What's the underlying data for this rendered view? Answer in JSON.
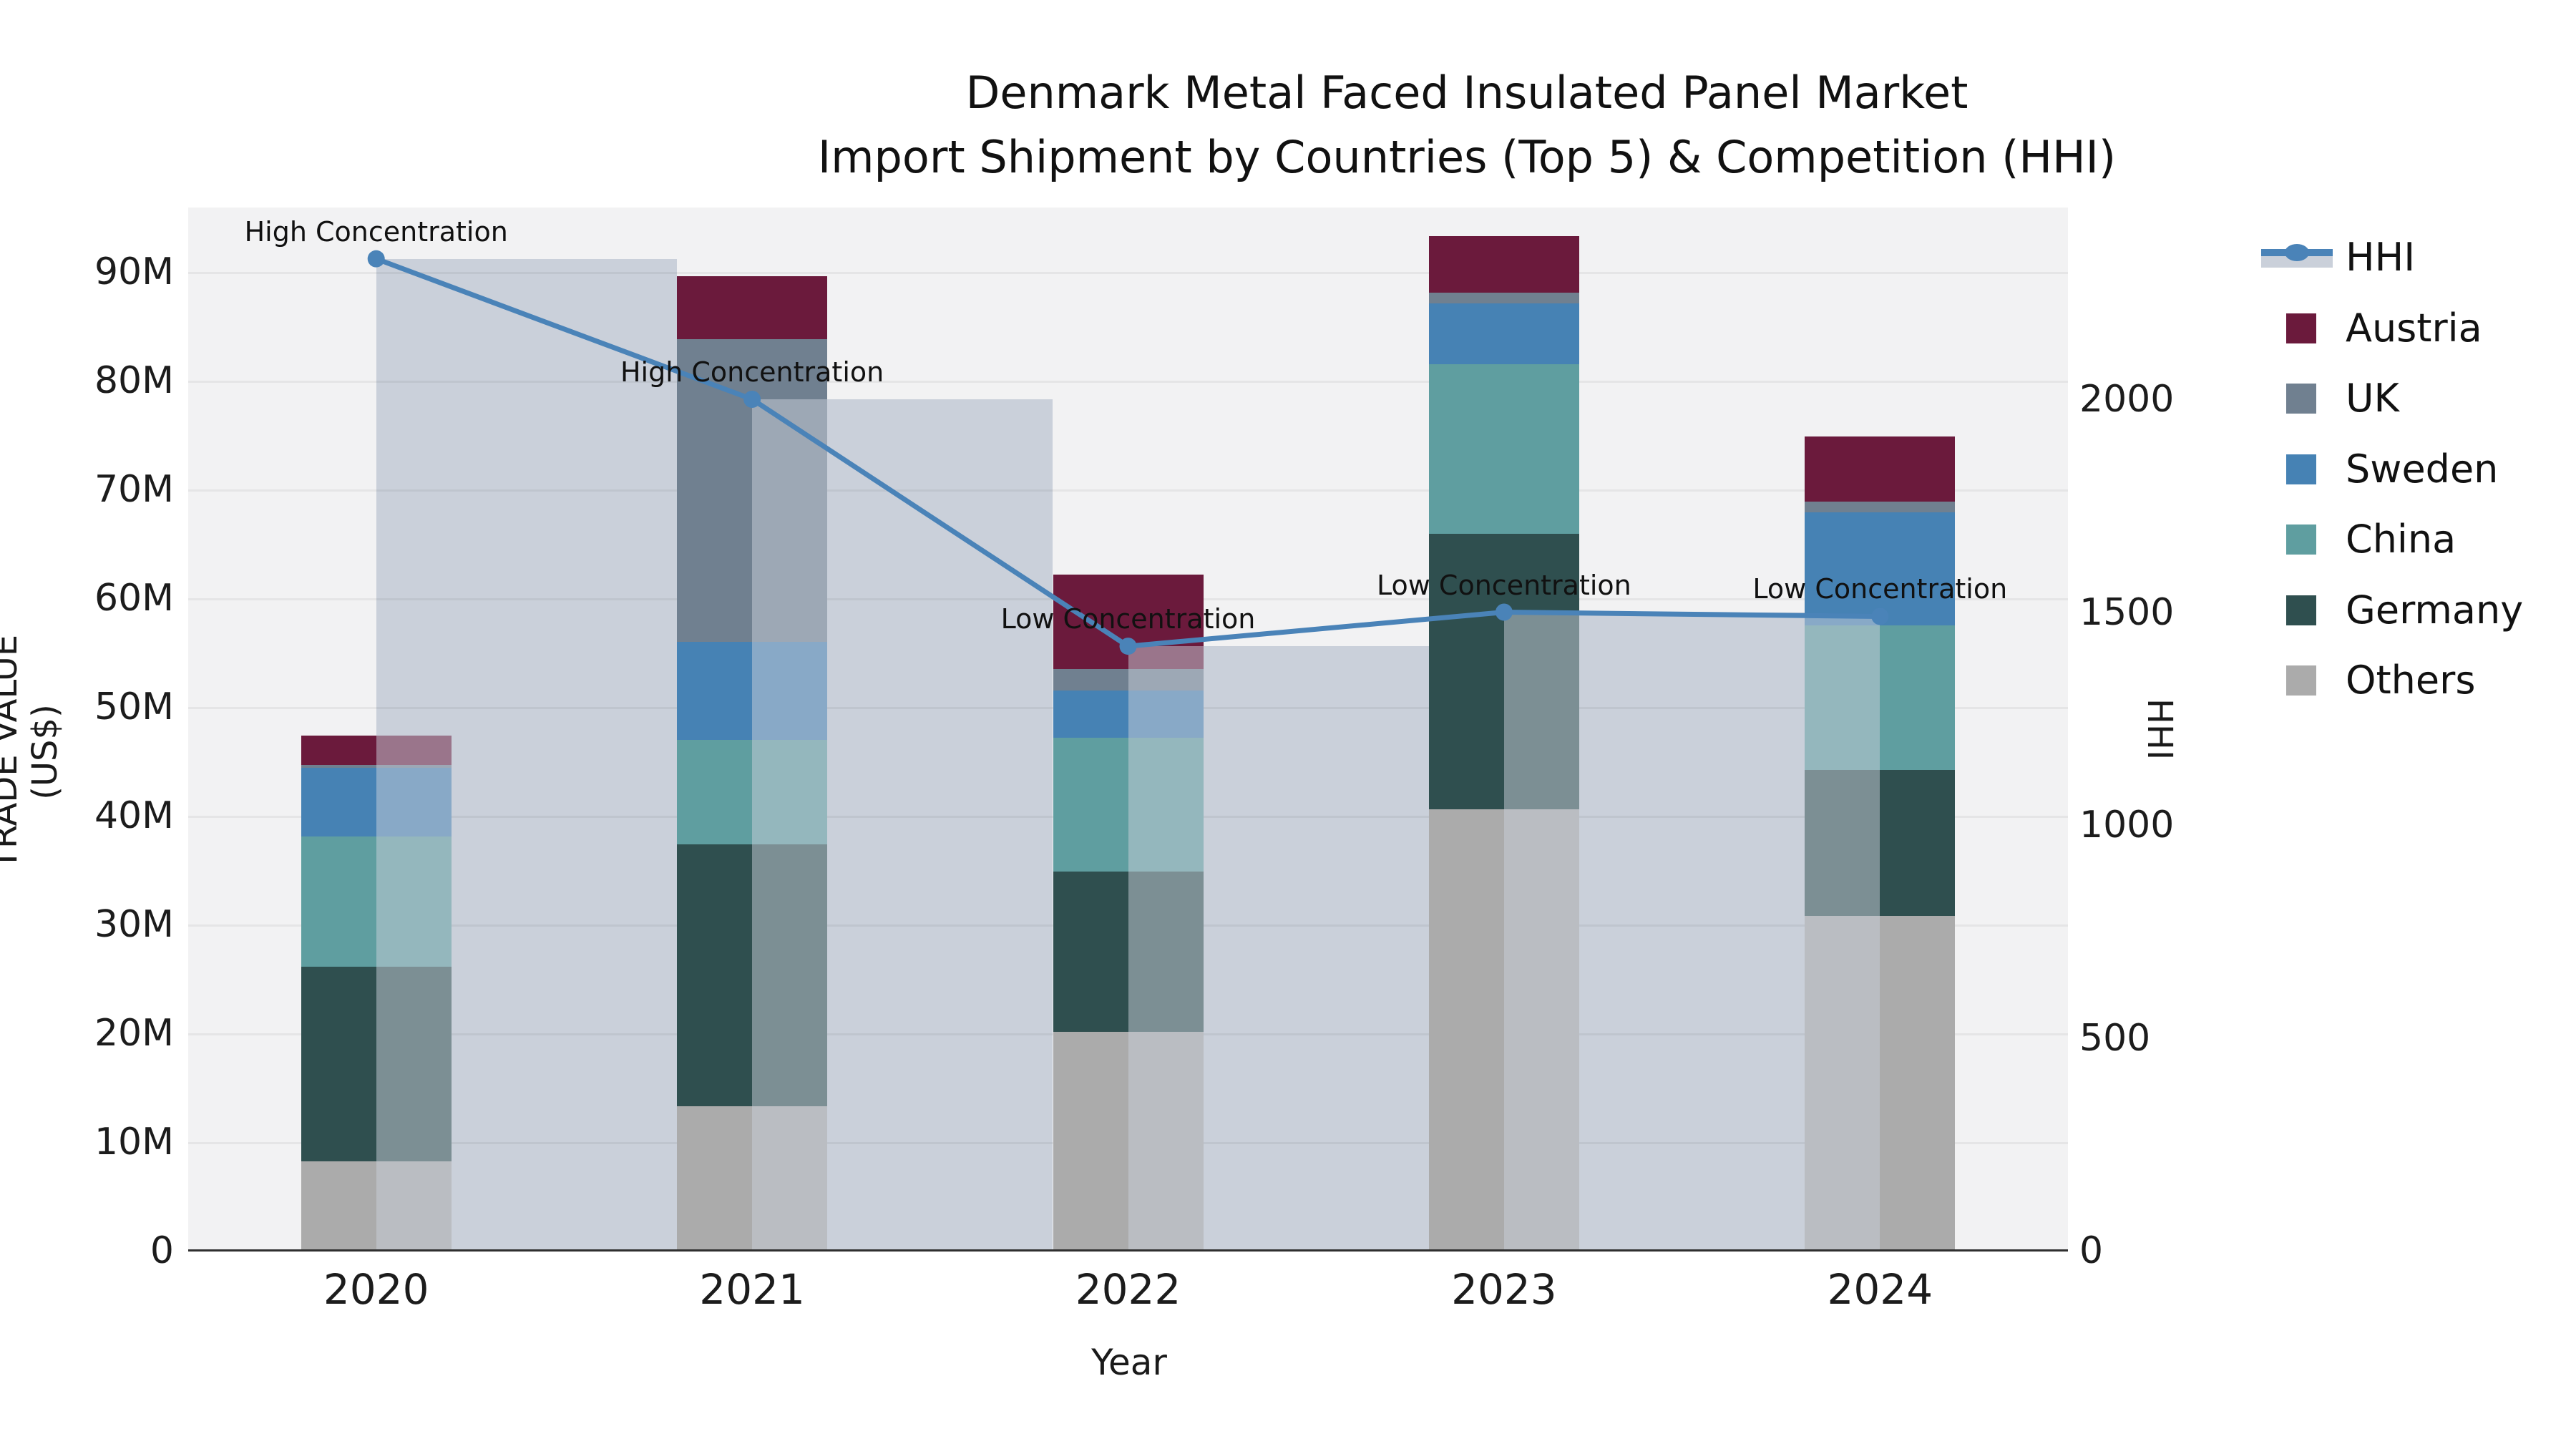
{
  "title": {
    "line1": "Denmark Metal Faced Insulated Panel Market",
    "line2": "Import Shipment by Countries (Top 5) & Competition (HHI)"
  },
  "axes": {
    "x_label": "Year",
    "y_left_label": "TRADE VALUE (US$)",
    "y_right_label": "HHI",
    "y_left_ticks": [
      "0",
      "10M",
      "20M",
      "30M",
      "40M",
      "50M",
      "60M",
      "70M",
      "80M",
      "90M"
    ],
    "y_right_ticks": [
      "0",
      "500",
      "1000",
      "1500",
      "2000"
    ]
  },
  "legend": {
    "items": [
      {
        "name": "HHI",
        "color": "#4a83b8",
        "type": "line"
      },
      {
        "name": "Austria",
        "color": "#6b1a3c",
        "type": "square"
      },
      {
        "name": "UK",
        "color": "#708090",
        "type": "square"
      },
      {
        "name": "Sweden",
        "color": "#4682b4",
        "type": "square"
      },
      {
        "name": "China",
        "color": "#5f9ea0",
        "type": "square"
      },
      {
        "name": "Germany",
        "color": "#2f4f4f",
        "type": "square"
      },
      {
        "name": "Others",
        "color": "#ababab",
        "type": "square"
      }
    ]
  },
  "chart_data": {
    "type": "stacked-bar + line (dual axis)",
    "title": "Denmark Metal Faced Insulated Panel Market — Import Shipment by Countries (Top 5) & Competition (HHI)",
    "categories": [
      "2020",
      "2021",
      "2022",
      "2023",
      "2024"
    ],
    "xlabel": "Year",
    "ylabel_left": "TRADE VALUE (US$)",
    "ylabel_right": "HHI",
    "ylim_left_musd": [
      0,
      95.9
    ],
    "ylim_right_hhi": [
      0,
      2450
    ],
    "grid": "horizontal, every 10M",
    "legend_position": "right, outside plot",
    "series_stacked_musd_bottom_to_top": [
      {
        "name": "Others",
        "color": "#ababab",
        "values": [
          8.2,
          13.3,
          20.1,
          40.6,
          30.8
        ]
      },
      {
        "name": "Germany",
        "color": "#2f4f4f",
        "values": [
          17.9,
          24.1,
          14.8,
          25.3,
          13.4
        ]
      },
      {
        "name": "China",
        "color": "#5f9ea0",
        "values": [
          12.0,
          9.6,
          12.3,
          15.6,
          13.3
        ]
      },
      {
        "name": "Sweden",
        "color": "#4682b4",
        "values": [
          6.3,
          9.0,
          4.3,
          5.6,
          10.4
        ]
      },
      {
        "name": "UK",
        "color": "#708090",
        "values": [
          0.25,
          27.8,
          2.0,
          1.0,
          1.0
        ]
      },
      {
        "name": "Austria",
        "color": "#6b1a3c",
        "values": [
          2.7,
          5.8,
          8.7,
          5.2,
          6.0
        ]
      }
    ],
    "bar_totals_musd": [
      47.35,
      89.6,
      62.2,
      93.3,
      74.9
    ],
    "line_series": {
      "name": "HHI",
      "color": "#4a83b8",
      "values": [
        2330,
        2000,
        1420,
        1500,
        1490
      ],
      "shadow_bar_color": "#cad0da",
      "shadow_bar_side_per_year": [
        "right",
        "right",
        "right",
        "right",
        "left"
      ]
    },
    "annotations": [
      {
        "year": "2020",
        "text": "High Concentration"
      },
      {
        "year": "2021",
        "text": "High Concentration"
      },
      {
        "year": "2022",
        "text": "Low Concentration"
      },
      {
        "year": "2023",
        "text": "Low Concentration"
      },
      {
        "year": "2024",
        "text": "Low Concentration"
      }
    ]
  }
}
